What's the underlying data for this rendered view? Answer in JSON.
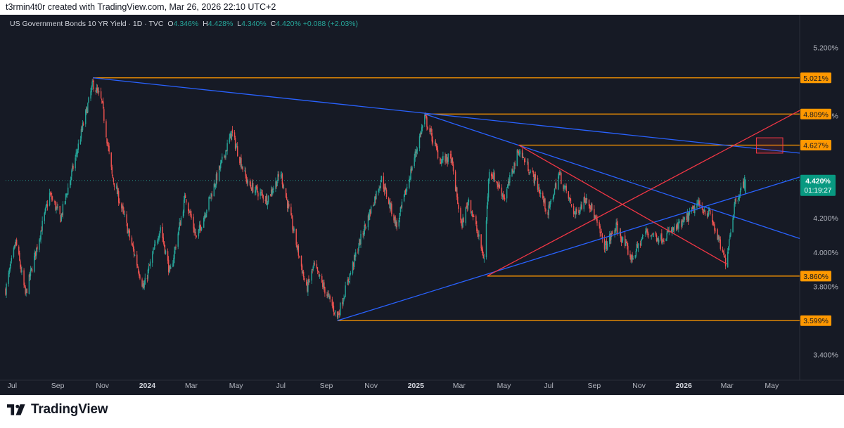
{
  "header": {
    "attribution": "t3rmin4t0r created with TradingView.com, Mar 26, 2026 22:10 UTC+2"
  },
  "legend": {
    "symbol": "US Government Bonds 10 YR Yield · 1D · TVC",
    "open_key": "O",
    "open": "4.346%",
    "high_key": "H",
    "high": "4.428%",
    "low_key": "L",
    "low": "4.340%",
    "close_key": "C",
    "close": "4.420%",
    "change": "+0.088 (+2.03%)"
  },
  "footer": {
    "brand": "TradingView"
  },
  "colors": {
    "background": "#161a25",
    "up": "#26a69a",
    "down": "#ef5350",
    "blue_line": "#2962ff",
    "red_line": "#f23645",
    "orange_line": "#ff9800",
    "text": "#b2b5be"
  },
  "chart_data": {
    "type": "candlestick",
    "title": "US Government Bonds 10 YR Yield · 1D · TVC",
    "x_range": [
      "2023-06-22",
      "2026-06-08"
    ],
    "ylim": [
      3.25,
      5.3
    ],
    "y_ticks": [
      "5.200%",
      "4.800%",
      "4.200%",
      "4.000%",
      "3.800%",
      "3.400%"
    ],
    "x_ticks": [
      {
        "label": "Jul",
        "date": "2023-07-01",
        "bold": false
      },
      {
        "label": "Sep",
        "date": "2023-09-01",
        "bold": false
      },
      {
        "label": "Nov",
        "date": "2023-11-01",
        "bold": false
      },
      {
        "label": "2024",
        "date": "2024-01-01",
        "bold": true
      },
      {
        "label": "Mar",
        "date": "2024-03-01",
        "bold": false
      },
      {
        "label": "May",
        "date": "2024-05-01",
        "bold": false
      },
      {
        "label": "Jul",
        "date": "2024-07-01",
        "bold": false
      },
      {
        "label": "Sep",
        "date": "2024-09-01",
        "bold": false
      },
      {
        "label": "Nov",
        "date": "2024-11-01",
        "bold": false
      },
      {
        "label": "2025",
        "date": "2025-01-01",
        "bold": true
      },
      {
        "label": "Mar",
        "date": "2025-03-01",
        "bold": false
      },
      {
        "label": "May",
        "date": "2025-05-01",
        "bold": false
      },
      {
        "label": "Jul",
        "date": "2025-07-01",
        "bold": false
      },
      {
        "label": "Sep",
        "date": "2025-09-01",
        "bold": false
      },
      {
        "label": "Nov",
        "date": "2025-11-01",
        "bold": false
      },
      {
        "label": "2026",
        "date": "2026-01-01",
        "bold": true
      },
      {
        "label": "Mar",
        "date": "2026-03-01",
        "bold": false
      },
      {
        "label": "May",
        "date": "2026-05-01",
        "bold": false
      }
    ],
    "price_path": [
      [
        "2023-06-22",
        3.78
      ],
      [
        "2023-07-06",
        4.06
      ],
      [
        "2023-07-19",
        3.75
      ],
      [
        "2023-08-21",
        4.34
      ],
      [
        "2023-09-05",
        4.2
      ],
      [
        "2023-09-25",
        4.55
      ],
      [
        "2023-10-19",
        4.99
      ],
      [
        "2023-10-31",
        4.88
      ],
      [
        "2023-11-14",
        4.45
      ],
      [
        "2023-12-01",
        4.2
      ],
      [
        "2023-12-27",
        3.79
      ],
      [
        "2024-01-19",
        4.15
      ],
      [
        "2024-02-01",
        3.87
      ],
      [
        "2024-02-22",
        4.33
      ],
      [
        "2024-03-08",
        4.08
      ],
      [
        "2024-04-25",
        4.7
      ],
      [
        "2024-05-17",
        4.4
      ],
      [
        "2024-06-12",
        4.31
      ],
      [
        "2024-07-01",
        4.46
      ],
      [
        "2024-08-05",
        3.78
      ],
      [
        "2024-08-15",
        3.92
      ],
      [
        "2024-09-16",
        3.62
      ],
      [
        "2024-10-15",
        4.04
      ],
      [
        "2024-11-15",
        4.43
      ],
      [
        "2024-12-06",
        4.15
      ],
      [
        "2025-01-13",
        4.79
      ],
      [
        "2025-02-03",
        4.54
      ],
      [
        "2025-02-18",
        4.55
      ],
      [
        "2025-03-04",
        4.15
      ],
      [
        "2025-03-14",
        4.31
      ],
      [
        "2025-04-04",
        3.96
      ],
      [
        "2025-04-11",
        4.49
      ],
      [
        "2025-05-02",
        4.32
      ],
      [
        "2025-05-21",
        4.6
      ],
      [
        "2025-06-13",
        4.42
      ],
      [
        "2025-06-30",
        4.23
      ],
      [
        "2025-07-15",
        4.46
      ],
      [
        "2025-08-06",
        4.22
      ],
      [
        "2025-08-22",
        4.33
      ],
      [
        "2025-09-16",
        4.03
      ],
      [
        "2025-10-01",
        4.15
      ],
      [
        "2025-10-22",
        3.96
      ],
      [
        "2025-11-10",
        4.12
      ],
      [
        "2025-12-01",
        4.08
      ],
      [
        "2025-12-31",
        4.17
      ],
      [
        "2026-01-20",
        4.28
      ],
      [
        "2026-02-06",
        4.22
      ],
      [
        "2026-02-27",
        3.94
      ],
      [
        "2026-03-12",
        4.3
      ],
      [
        "2026-03-26",
        4.42
      ]
    ],
    "last_price_label": "4.420%",
    "countdown_label": "01:19:27",
    "horizontal_levels": [
      {
        "price": 5.021,
        "label": "5.021%",
        "from": "2023-10-19"
      },
      {
        "price": 4.809,
        "label": "4.809%",
        "from": "2025-01-13"
      },
      {
        "price": 4.627,
        "label": "4.627%",
        "from": "2025-05-21"
      },
      {
        "price": 3.86,
        "label": "3.860%",
        "from": "2025-04-08"
      },
      {
        "price": 3.599,
        "label": "3.599%",
        "from": "2024-09-16"
      }
    ],
    "trendlines": [
      {
        "color": "blue",
        "from": [
          "2023-10-19",
          5.021
        ],
        "to": [
          "2026-06-08",
          4.58
        ]
      },
      {
        "color": "blue",
        "from": [
          "2025-01-13",
          4.809
        ],
        "to": [
          "2026-06-08",
          4.08
        ]
      },
      {
        "color": "blue",
        "from": [
          "2024-09-16",
          3.599
        ],
        "to": [
          "2026-06-08",
          4.44
        ]
      },
      {
        "color": "red",
        "from": [
          "2025-04-08",
          3.86
        ],
        "to": [
          "2026-06-08",
          4.83
        ]
      },
      {
        "color": "red",
        "from": [
          "2025-05-21",
          4.627
        ],
        "to": [
          "2026-03-01",
          3.93
        ]
      }
    ],
    "target_box": {
      "from": [
        "2026-04-10",
        4.67
      ],
      "to": [
        "2026-05-16",
        4.58
      ],
      "color": "red"
    }
  }
}
